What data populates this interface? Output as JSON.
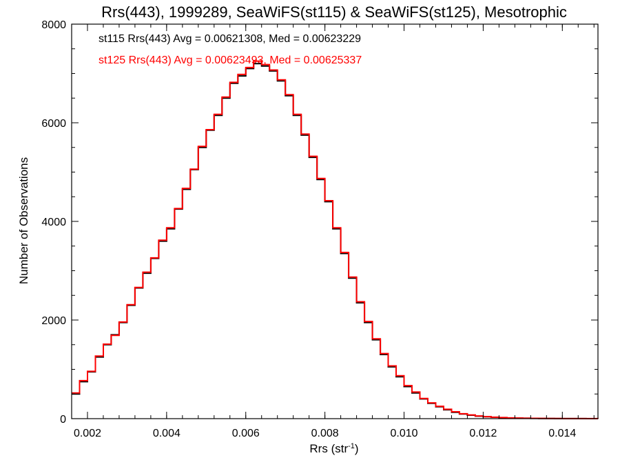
{
  "colors": {
    "st115": "#000000",
    "st125": "#ff0000",
    "axis": "#000000"
  },
  "chart_data": {
    "type": "line",
    "title": "Rrs(443), 1999289, SeaWiFS(st115) & SeaWiFS(st125), Mesotrophic",
    "xlabel_main": "Rrs (str",
    "xlabel_sup": "-1",
    "xlabel_end": ")",
    "ylabel": "Number of Observations",
    "xlim": [
      0.0016,
      0.0149
    ],
    "ylim": [
      0,
      8000
    ],
    "grid": false,
    "step": true,
    "xticks": [
      0.002,
      0.004,
      0.006,
      0.008,
      0.01,
      0.012,
      0.014
    ],
    "xtick_labels": [
      "0.002",
      "0.004",
      "0.006",
      "0.008",
      "0.010",
      "0.012",
      "0.014"
    ],
    "yticks": [
      0,
      2000,
      4000,
      6000,
      8000
    ],
    "ytick_labels": [
      "0",
      "2000",
      "4000",
      "6000",
      "8000"
    ],
    "annotations": [
      {
        "text": "st115 Rrs(443) Avg = 0.00621308, Med = 0.00623229",
        "color": "#000000"
      },
      {
        "text": "st125 Rrs(443) Avg = 0.00623493, Med = 0.00625337",
        "color": "#ff0000"
      }
    ],
    "x": [
      0.0016,
      0.0018,
      0.002,
      0.0022,
      0.0024,
      0.0026,
      0.0028,
      0.003,
      0.0032,
      0.0034,
      0.0036,
      0.0038,
      0.004,
      0.0042,
      0.0044,
      0.0046,
      0.0048,
      0.005,
      0.0052,
      0.0054,
      0.0056,
      0.0058,
      0.006,
      0.0062,
      0.0064,
      0.0066,
      0.0068,
      0.007,
      0.0072,
      0.0074,
      0.0076,
      0.0078,
      0.008,
      0.0082,
      0.0084,
      0.0086,
      0.0088,
      0.009,
      0.0092,
      0.0094,
      0.0096,
      0.0098,
      0.01,
      0.0102,
      0.0104,
      0.0106,
      0.0108,
      0.011,
      0.0112,
      0.0114,
      0.0116,
      0.0118,
      0.012,
      0.0122,
      0.0124,
      0.0126,
      0.0128,
      0.013,
      0.0132,
      0.0134,
      0.0136,
      0.0138,
      0.014,
      0.0142,
      0.0144,
      0.0146,
      0.0149
    ],
    "series": [
      {
        "name": "st115",
        "color": "#000000",
        "values": [
          500,
          750,
          950,
          1250,
          1500,
          1700,
          1950,
          2300,
          2650,
          2950,
          3250,
          3600,
          3850,
          4250,
          4650,
          5050,
          5500,
          5850,
          6150,
          6500,
          6800,
          6950,
          7100,
          7200,
          7150,
          7050,
          6850,
          6550,
          6150,
          5750,
          5300,
          4850,
          4400,
          3850,
          3350,
          2850,
          2350,
          1950,
          1600,
          1300,
          1050,
          850,
          650,
          520,
          400,
          310,
          240,
          180,
          130,
          95,
          70,
          50,
          38,
          28,
          20,
          14,
          10,
          8,
          6,
          4,
          3,
          2,
          2,
          1,
          1,
          0,
          0
        ]
      },
      {
        "name": "st125",
        "color": "#ff0000",
        "values": [
          520,
          770,
          960,
          1270,
          1510,
          1690,
          1960,
          2310,
          2660,
          2970,
          3260,
          3620,
          3870,
          4260,
          4670,
          5060,
          5520,
          5860,
          6170,
          6520,
          6820,
          6980,
          7120,
          7250,
          7180,
          7070,
          6870,
          6570,
          6170,
          5770,
          5320,
          4870,
          4420,
          3870,
          3370,
          2870,
          2370,
          1970,
          1620,
          1320,
          1070,
          870,
          670,
          540,
          410,
          320,
          250,
          190,
          140,
          100,
          75,
          55,
          40,
          30,
          22,
          16,
          12,
          9,
          7,
          5,
          4,
          3,
          2,
          2,
          1,
          1,
          0
        ]
      }
    ]
  }
}
